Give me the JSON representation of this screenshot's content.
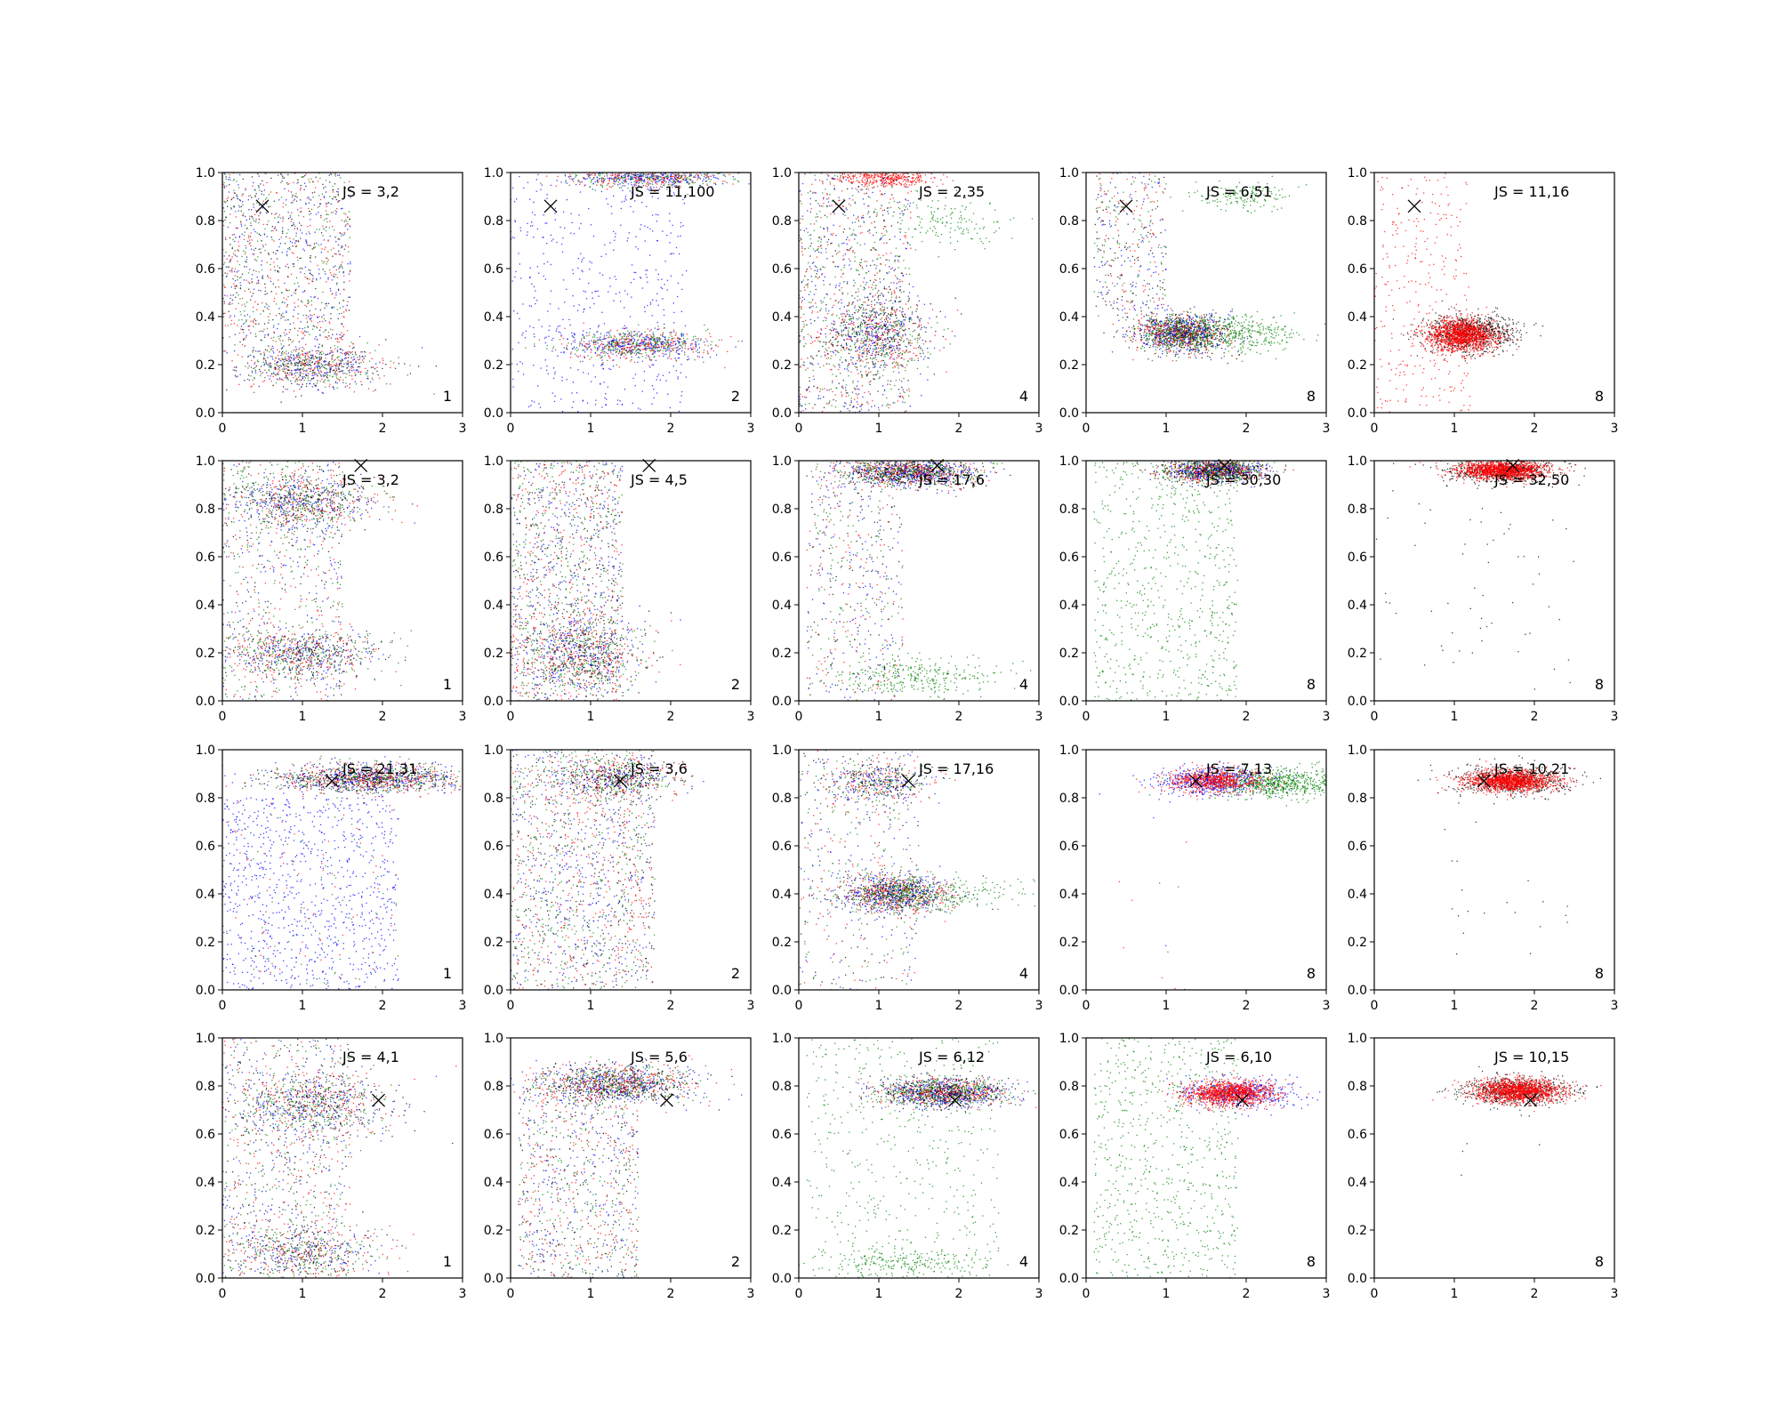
{
  "figure": {
    "grid": false,
    "layout": "4 rows x 5 columns of scatter panels",
    "colors": {
      "blue": "#0000ff",
      "green": "#008000",
      "red": "#ff0000",
      "black": "#000000",
      "marker": "#000000"
    }
  },
  "chart_data": [
    {
      "type": "scatter",
      "xlim": [
        0,
        3
      ],
      "ylim": [
        0,
        1
      ],
      "xticks": [
        "0",
        "1",
        "2",
        "3"
      ],
      "yticks": [
        "0.0",
        "0.2",
        "0.4",
        "0.6",
        "0.8",
        "1.0"
      ],
      "js_label": "JS = 3,2",
      "k_label": "1",
      "marker_x": [
        0.5,
        0.86
      ],
      "clusters": [
        {
          "color": "mix4",
          "x": 1.1,
          "y": 0.2,
          "sx": 0.45,
          "sy": 0.05,
          "n": 900
        },
        {
          "color": "mix4",
          "band": [
            0,
            1.6,
            0.3,
            1.0
          ],
          "n": 1100
        }
      ]
    },
    {
      "type": "scatter",
      "xlim": [
        0,
        3
      ],
      "ylim": [
        0,
        1
      ],
      "xticks": [
        "0",
        "1",
        "2",
        "3"
      ],
      "yticks": [
        "0.0",
        "0.2",
        "0.4",
        "0.6",
        "0.8",
        "1.0"
      ],
      "js_label": "JS = 11,100",
      "k_label": "2",
      "marker_x": [
        0.5,
        0.86
      ],
      "clusters": [
        {
          "color": "mix3",
          "x": 1.6,
          "y": 0.28,
          "sx": 0.45,
          "sy": 0.03,
          "n": 900
        },
        {
          "color": "mix3",
          "x": 1.7,
          "y": 0.98,
          "sx": 0.5,
          "sy": 0.02,
          "n": 800
        },
        {
          "color": "blue",
          "band": [
            0,
            2.2,
            0.0,
            1.0
          ],
          "n": 500
        }
      ]
    },
    {
      "type": "scatter",
      "xlim": [
        0,
        3
      ],
      "ylim": [
        0,
        1
      ],
      "xticks": [
        "0",
        "1",
        "2",
        "3"
      ],
      "yticks": [
        "0.0",
        "0.2",
        "0.4",
        "0.6",
        "0.8",
        "1.0"
      ],
      "js_label": "JS = 2,35",
      "k_label": "4",
      "marker_x": [
        0.5,
        0.86
      ],
      "clusters": [
        {
          "color": "mix4",
          "x": 1.0,
          "y": 0.33,
          "sx": 0.35,
          "sy": 0.08,
          "n": 900
        },
        {
          "color": "red",
          "x": 1.1,
          "y": 0.98,
          "sx": 0.3,
          "sy": 0.02,
          "n": 400
        },
        {
          "color": "mix4",
          "band": [
            0,
            1.4,
            0.0,
            1.0
          ],
          "n": 1100
        },
        {
          "color": "green",
          "x": 1.8,
          "y": 0.8,
          "sx": 0.4,
          "sy": 0.05,
          "n": 150
        }
      ]
    },
    {
      "type": "scatter",
      "xlim": [
        0,
        3
      ],
      "ylim": [
        0,
        1
      ],
      "xticks": [
        "0",
        "1",
        "2",
        "3"
      ],
      "yticks": [
        "0.0",
        "0.2",
        "0.4",
        "0.6",
        "0.8",
        "1.0"
      ],
      "js_label": "JS = 6,51",
      "k_label": "8",
      "marker_x": [
        0.5,
        0.86
      ],
      "clusters": [
        {
          "color": "mix4",
          "x": 1.2,
          "y": 0.33,
          "sx": 0.3,
          "sy": 0.04,
          "n": 1600
        },
        {
          "color": "green",
          "x": 1.9,
          "y": 0.33,
          "sx": 0.4,
          "sy": 0.04,
          "n": 350
        },
        {
          "color": "mix4",
          "band": [
            0.1,
            1.0,
            0.4,
            1.0
          ],
          "n": 400
        },
        {
          "color": "green",
          "x": 1.9,
          "y": 0.9,
          "sx": 0.3,
          "sy": 0.03,
          "n": 150
        }
      ]
    },
    {
      "type": "scatter",
      "xlim": [
        0,
        3
      ],
      "ylim": [
        0,
        1
      ],
      "xticks": [
        "0",
        "1",
        "2",
        "3"
      ],
      "yticks": [
        "0.0",
        "0.2",
        "0.4",
        "0.6",
        "0.8",
        "1.0"
      ],
      "js_label": "JS = 11,16",
      "k_label": "8",
      "marker_x": [
        0.5,
        0.86
      ],
      "clusters": [
        {
          "color": "black",
          "x": 1.2,
          "y": 0.33,
          "sx": 0.28,
          "sy": 0.04,
          "n": 800
        },
        {
          "color": "red",
          "x": 1.1,
          "y": 0.32,
          "sx": 0.22,
          "sy": 0.035,
          "n": 1400
        },
        {
          "color": "red",
          "band": [
            0,
            1.2,
            0.0,
            1.0
          ],
          "n": 300
        }
      ]
    },
    {
      "type": "scatter",
      "xlim": [
        0,
        3
      ],
      "ylim": [
        0,
        1
      ],
      "xticks": [
        "0",
        "1",
        "2",
        "3"
      ],
      "yticks": [
        "0.0",
        "0.2",
        "0.4",
        "0.6",
        "0.8",
        "1.0"
      ],
      "js_label": "JS = 3,2",
      "k_label": "1",
      "marker_x": [
        1.73,
        0.98
      ],
      "clusters": [
        {
          "color": "mix4",
          "x": 1.0,
          "y": 0.83,
          "sx": 0.45,
          "sy": 0.06,
          "n": 900
        },
        {
          "color": "mix4",
          "x": 1.0,
          "y": 0.2,
          "sx": 0.5,
          "sy": 0.05,
          "n": 800
        },
        {
          "color": "mix4",
          "band": [
            0,
            1.5,
            0.0,
            1.0
          ],
          "n": 800
        }
      ]
    },
    {
      "type": "scatter",
      "xlim": [
        0,
        3
      ],
      "ylim": [
        0,
        1
      ],
      "xticks": [
        "0",
        "1",
        "2",
        "3"
      ],
      "yticks": [
        "0.0",
        "0.2",
        "0.4",
        "0.6",
        "0.8",
        "1.0"
      ],
      "js_label": "JS = 4,5",
      "k_label": "2",
      "marker_x": [
        1.73,
        0.98
      ],
      "clusters": [
        {
          "color": "mix4",
          "x": 0.9,
          "y": 0.2,
          "sx": 0.4,
          "sy": 0.08,
          "n": 900
        },
        {
          "color": "mix4",
          "band": [
            0,
            1.4,
            0.0,
            1.0
          ],
          "n": 1500
        }
      ]
    },
    {
      "type": "scatter",
      "xlim": [
        0,
        3
      ],
      "ylim": [
        0,
        1
      ],
      "xticks": [
        "0",
        "1",
        "2",
        "3"
      ],
      "yticks": [
        "0.0",
        "0.2",
        "0.4",
        "0.6",
        "0.8",
        "1.0"
      ],
      "js_label": "JS = 17,6",
      "k_label": "4",
      "marker_x": [
        1.73,
        0.98
      ],
      "clusters": [
        {
          "color": "mix4",
          "x": 1.4,
          "y": 0.95,
          "sx": 0.4,
          "sy": 0.03,
          "n": 1400
        },
        {
          "color": "green",
          "x": 1.5,
          "y": 0.1,
          "sx": 0.5,
          "sy": 0.04,
          "n": 300
        },
        {
          "color": "mix4",
          "band": [
            0.1,
            1.3,
            0.0,
            1.0
          ],
          "n": 600
        }
      ]
    },
    {
      "type": "scatter",
      "xlim": [
        0,
        3
      ],
      "ylim": [
        0,
        1
      ],
      "xticks": [
        "0",
        "1",
        "2",
        "3"
      ],
      "yticks": [
        "0.0",
        "0.2",
        "0.4",
        "0.6",
        "0.8",
        "1.0"
      ],
      "js_label": "JS = 30,30",
      "k_label": "8",
      "marker_x": [
        1.73,
        0.98
      ],
      "clusters": [
        {
          "color": "mix4",
          "x": 1.6,
          "y": 0.96,
          "sx": 0.3,
          "sy": 0.025,
          "n": 1500
        },
        {
          "color": "green",
          "band": [
            0.1,
            1.9,
            0.0,
            1.0
          ],
          "n": 700
        }
      ]
    },
    {
      "type": "scatter",
      "xlim": [
        0,
        3
      ],
      "ylim": [
        0,
        1
      ],
      "xticks": [
        "0",
        "1",
        "2",
        "3"
      ],
      "yticks": [
        "0.0",
        "0.2",
        "0.4",
        "0.6",
        "0.8",
        "1.0"
      ],
      "js_label": "JS = 32,50",
      "k_label": "8",
      "marker_x": [
        1.73,
        0.98
      ],
      "clusters": [
        {
          "color": "black",
          "x": 1.6,
          "y": 0.96,
          "sx": 0.35,
          "sy": 0.025,
          "n": 600
        },
        {
          "color": "red",
          "x": 1.6,
          "y": 0.96,
          "sx": 0.28,
          "sy": 0.02,
          "n": 1400
        },
        {
          "color": "black",
          "band": [
            0,
            2.5,
            0.0,
            0.9
          ],
          "n": 60
        }
      ]
    },
    {
      "type": "scatter",
      "xlim": [
        0,
        3
      ],
      "ylim": [
        0,
        1
      ],
      "xticks": [
        "0",
        "1",
        "2",
        "3"
      ],
      "yticks": [
        "0.0",
        "0.2",
        "0.4",
        "0.6",
        "0.8",
        "1.0"
      ],
      "js_label": "JS = 21,31",
      "k_label": "1",
      "marker_x": [
        1.37,
        0.87
      ],
      "clusters": [
        {
          "color": "mix4",
          "x": 1.8,
          "y": 0.88,
          "sx": 0.6,
          "sy": 0.03,
          "n": 1500
        },
        {
          "color": "blue",
          "band": [
            0,
            2.2,
            0.0,
            0.8
          ],
          "n": 800
        },
        {
          "color": "mix3",
          "band": [
            0,
            2.2,
            0.0,
            0.8
          ],
          "n": 200
        }
      ]
    },
    {
      "type": "scatter",
      "xlim": [
        0,
        3
      ],
      "ylim": [
        0,
        1
      ],
      "xticks": [
        "0",
        "1",
        "2",
        "3"
      ],
      "yticks": [
        "0.0",
        "0.2",
        "0.4",
        "0.6",
        "0.8",
        "1.0"
      ],
      "js_label": "JS = 3,6",
      "k_label": "2",
      "marker_x": [
        1.37,
        0.87
      ],
      "clusters": [
        {
          "color": "mix4",
          "x": 1.3,
          "y": 0.88,
          "sx": 0.4,
          "sy": 0.04,
          "n": 700
        },
        {
          "color": "mix4",
          "band": [
            0,
            1.8,
            0.0,
            1.0
          ],
          "n": 1600
        }
      ]
    },
    {
      "type": "scatter",
      "xlim": [
        0,
        3
      ],
      "ylim": [
        0,
        1
      ],
      "xticks": [
        "0",
        "1",
        "2",
        "3"
      ],
      "yticks": [
        "0.0",
        "0.2",
        "0.4",
        "0.6",
        "0.8",
        "1.0"
      ],
      "js_label": "JS = 17,16",
      "k_label": "4",
      "marker_x": [
        1.37,
        0.87
      ],
      "clusters": [
        {
          "color": "mix4",
          "x": 1.2,
          "y": 0.4,
          "sx": 0.35,
          "sy": 0.04,
          "n": 1200
        },
        {
          "color": "mix4",
          "x": 1.0,
          "y": 0.86,
          "sx": 0.35,
          "sy": 0.04,
          "n": 500
        },
        {
          "color": "mix4",
          "band": [
            0,
            1.5,
            0.0,
            1.0
          ],
          "n": 500
        },
        {
          "color": "green",
          "x": 1.8,
          "y": 0.4,
          "sx": 0.5,
          "sy": 0.04,
          "n": 200
        }
      ]
    },
    {
      "type": "scatter",
      "xlim": [
        0,
        3
      ],
      "ylim": [
        0,
        1
      ],
      "xticks": [
        "0",
        "1",
        "2",
        "3"
      ],
      "yticks": [
        "0.0",
        "0.2",
        "0.4",
        "0.6",
        "0.8",
        "1.0"
      ],
      "js_label": "JS = 7,13",
      "k_label": "8",
      "marker_x": [
        1.37,
        0.87
      ],
      "clusters": [
        {
          "color": "blue",
          "x": 1.6,
          "y": 0.87,
          "sx": 0.35,
          "sy": 0.03,
          "n": 600
        },
        {
          "color": "green",
          "x": 2.4,
          "y": 0.86,
          "sx": 0.45,
          "sy": 0.03,
          "n": 700
        },
        {
          "color": "red",
          "x": 1.6,
          "y": 0.87,
          "sx": 0.3,
          "sy": 0.025,
          "n": 700
        },
        {
          "color": "mix3",
          "band": [
            0.3,
            1.5,
            0.0,
            0.8
          ],
          "n": 12
        }
      ]
    },
    {
      "type": "scatter",
      "xlim": [
        0,
        3
      ],
      "ylim": [
        0,
        1
      ],
      "xticks": [
        "0",
        "1",
        "2",
        "3"
      ],
      "yticks": [
        "0.0",
        "0.2",
        "0.4",
        "0.6",
        "0.8",
        "1.0"
      ],
      "js_label": "JS = 10,21",
      "k_label": "8",
      "marker_x": [
        1.37,
        0.87
      ],
      "clusters": [
        {
          "color": "black",
          "x": 1.7,
          "y": 0.87,
          "sx": 0.35,
          "sy": 0.03,
          "n": 600
        },
        {
          "color": "red",
          "x": 1.7,
          "y": 0.87,
          "sx": 0.28,
          "sy": 0.022,
          "n": 1400
        },
        {
          "color": "black",
          "band": [
            0.8,
            2.5,
            0.1,
            0.8
          ],
          "n": 20
        }
      ]
    },
    {
      "type": "scatter",
      "xlim": [
        0,
        3
      ],
      "ylim": [
        0,
        1
      ],
      "xticks": [
        "0",
        "1",
        "2",
        "3"
      ],
      "yticks": [
        "0.0",
        "0.2",
        "0.4",
        "0.6",
        "0.8",
        "1.0"
      ],
      "js_label": "JS = 4,1",
      "k_label": "1",
      "marker_x": [
        1.95,
        0.74
      ],
      "clusters": [
        {
          "color": "mix4",
          "x": 1.1,
          "y": 0.72,
          "sx": 0.5,
          "sy": 0.07,
          "n": 900
        },
        {
          "color": "mix4",
          "x": 1.0,
          "y": 0.1,
          "sx": 0.5,
          "sy": 0.06,
          "n": 600
        },
        {
          "color": "mix4",
          "band": [
            0,
            1.6,
            0.0,
            1.0
          ],
          "n": 900
        }
      ]
    },
    {
      "type": "scatter",
      "xlim": [
        0,
        3
      ],
      "ylim": [
        0,
        1
      ],
      "xticks": [
        "0",
        "1",
        "2",
        "3"
      ],
      "yticks": [
        "0.0",
        "0.2",
        "0.4",
        "0.6",
        "0.8",
        "1.0"
      ],
      "js_label": "JS = 5,6",
      "k_label": "2",
      "marker_x": [
        1.95,
        0.74
      ],
      "clusters": [
        {
          "color": "mix4",
          "x": 1.3,
          "y": 0.81,
          "sx": 0.5,
          "sy": 0.04,
          "n": 1300
        },
        {
          "color": "mix4",
          "band": [
            0.1,
            1.6,
            0.0,
            0.8
          ],
          "n": 1000
        }
      ]
    },
    {
      "type": "scatter",
      "xlim": [
        0,
        3
      ],
      "ylim": [
        0,
        1
      ],
      "xticks": [
        "0",
        "1",
        "2",
        "3"
      ],
      "yticks": [
        "0.0",
        "0.2",
        "0.4",
        "0.6",
        "0.8",
        "1.0"
      ],
      "js_label": "JS = 6,12",
      "k_label": "4",
      "marker_x": [
        1.95,
        0.74
      ],
      "clusters": [
        {
          "color": "mix4",
          "x": 1.8,
          "y": 0.77,
          "sx": 0.4,
          "sy": 0.03,
          "n": 1500
        },
        {
          "color": "green",
          "band": [
            0.1,
            2.5,
            0.0,
            1.0
          ],
          "n": 500
        },
        {
          "color": "green",
          "x": 1.3,
          "y": 0.06,
          "sx": 0.5,
          "sy": 0.03,
          "n": 200
        }
      ]
    },
    {
      "type": "scatter",
      "xlim": [
        0,
        3
      ],
      "ylim": [
        0,
        1
      ],
      "xticks": [
        "0",
        "1",
        "2",
        "3"
      ],
      "yticks": [
        "0.0",
        "0.2",
        "0.4",
        "0.6",
        "0.8",
        "1.0"
      ],
      "js_label": "JS = 6,10",
      "k_label": "8",
      "marker_x": [
        1.95,
        0.74
      ],
      "clusters": [
        {
          "color": "blue",
          "x": 1.9,
          "y": 0.77,
          "sx": 0.35,
          "sy": 0.03,
          "n": 500
        },
        {
          "color": "red",
          "x": 1.8,
          "y": 0.77,
          "sx": 0.28,
          "sy": 0.025,
          "n": 1200
        },
        {
          "color": "green",
          "band": [
            0.1,
            1.9,
            0.0,
            1.0
          ],
          "n": 700
        }
      ]
    },
    {
      "type": "scatter",
      "xlim": [
        0,
        3
      ],
      "ylim": [
        0,
        1
      ],
      "xticks": [
        "0",
        "1",
        "2",
        "3"
      ],
      "yticks": [
        "0.0",
        "0.2",
        "0.4",
        "0.6",
        "0.8",
        "1.0"
      ],
      "js_label": "JS = 10,15",
      "k_label": "8",
      "marker_x": [
        1.95,
        0.74
      ],
      "clusters": [
        {
          "color": "black",
          "x": 1.8,
          "y": 0.78,
          "sx": 0.35,
          "sy": 0.03,
          "n": 600
        },
        {
          "color": "red",
          "x": 1.8,
          "y": 0.78,
          "sx": 0.28,
          "sy": 0.025,
          "n": 1400
        },
        {
          "color": "black",
          "band": [
            1.0,
            2.2,
            0.1,
            0.7
          ],
          "n": 5
        }
      ]
    }
  ]
}
